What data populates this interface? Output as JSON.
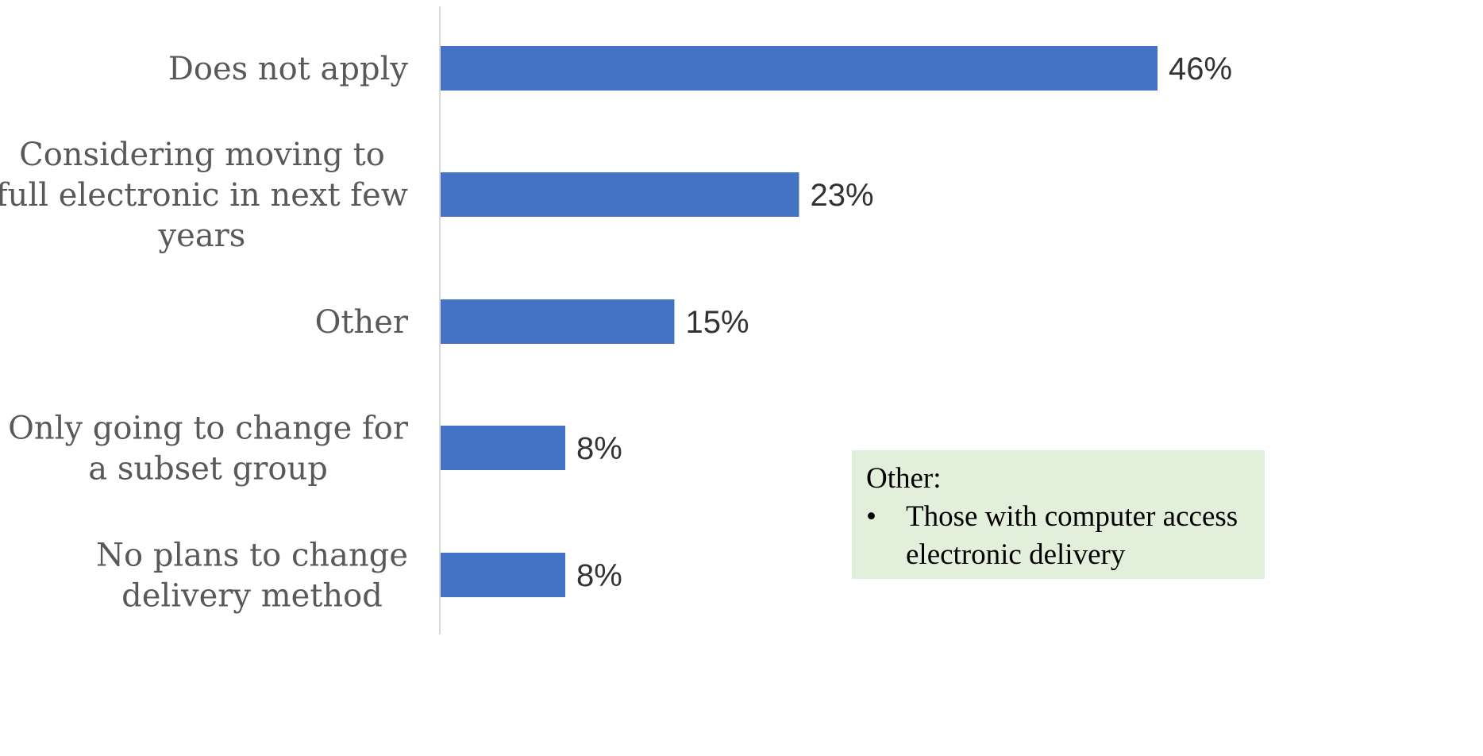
{
  "chart_data": {
    "type": "bar",
    "orientation": "horizontal",
    "categories": [
      "Does not apply",
      "Considering moving to full electronic in next few years",
      "Other",
      "Only going to change for a subset group",
      "No plans to change delivery method"
    ],
    "category_lines": [
      [
        "Does not apply"
      ],
      [
        "Considering moving to",
        "full electronic in next few",
        "years"
      ],
      [
        "Other"
      ],
      [
        "Only going to change for",
        "a subset group"
      ],
      [
        "No plans to change",
        "delivery method"
      ]
    ],
    "values": [
      46,
      23,
      15,
      8,
      8
    ],
    "value_labels": [
      "46%",
      "23%",
      "15%",
      "8%",
      "8%"
    ],
    "bar_color": "#4472c4",
    "grid": false,
    "legend": "none"
  },
  "note": {
    "title": "Other:",
    "bullets": [
      "Those with computer access",
      "electronic delivery"
    ],
    "background": "#e2efda"
  }
}
